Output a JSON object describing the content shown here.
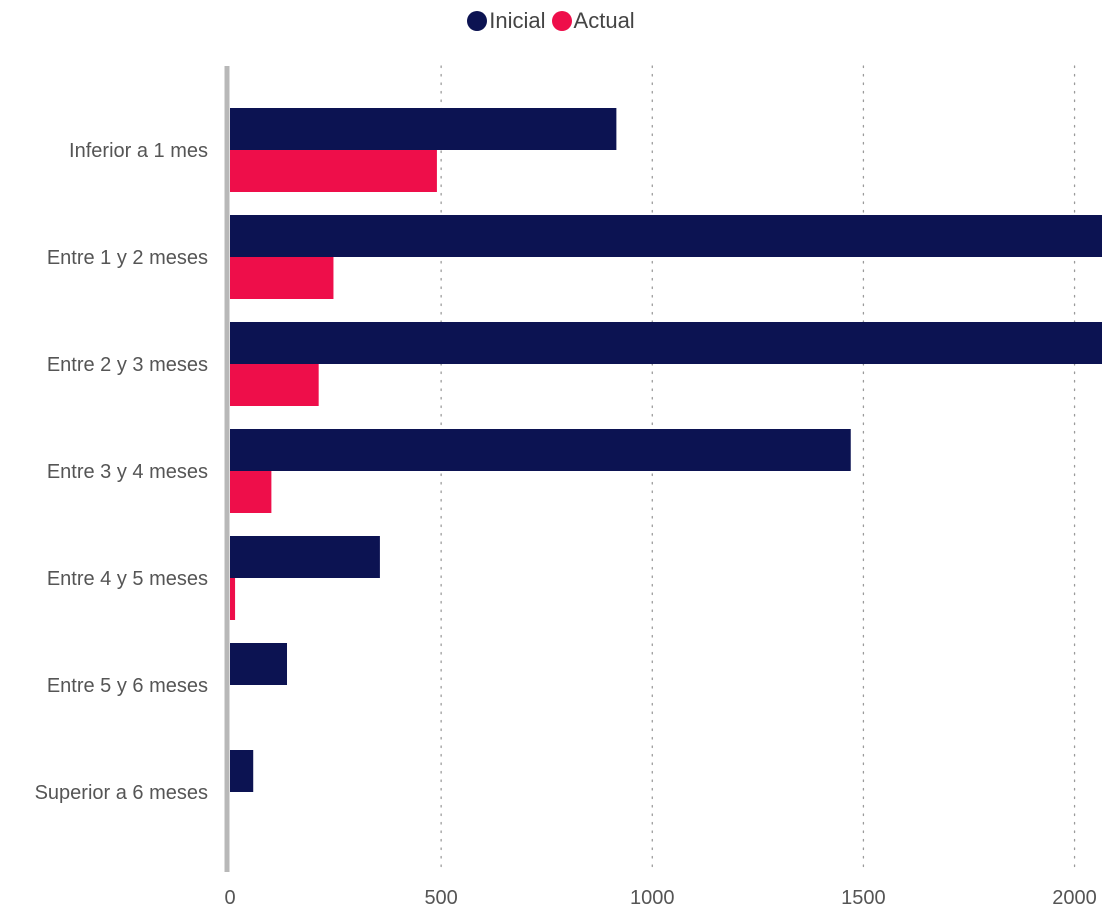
{
  "legend": {
    "items": [
      {
        "label": "Inicial",
        "color": "#0c1352"
      },
      {
        "label": "Actual",
        "color": "#ee0e4a"
      }
    ]
  },
  "chart_data": {
    "type": "bar",
    "orientation": "horizontal",
    "categories": [
      "Inferior a 1 mes",
      "Entre 1 y 2 meses",
      "Entre 2 y 3 meses",
      "Entre 3 y 4 meses",
      "Entre 4 y 5 meses",
      "Entre 5 y 6 meses",
      "Superior a 6 meses"
    ],
    "series": [
      {
        "name": "Inicial",
        "color": "#0c1352",
        "values": [
          915,
          2150,
          2130,
          1470,
          355,
          135,
          55
        ]
      },
      {
        "name": "Actual",
        "color": "#ee0e4a",
        "values": [
          490,
          245,
          210,
          98,
          12,
          0,
          0
        ]
      }
    ],
    "x_ticks": [
      0,
      500,
      1000,
      1500,
      2000
    ],
    "xlim": [
      0,
      2065
    ],
    "grid": "vertical dotted",
    "legend_position": "top-center",
    "title": "",
    "xlabel": "",
    "ylabel": ""
  }
}
